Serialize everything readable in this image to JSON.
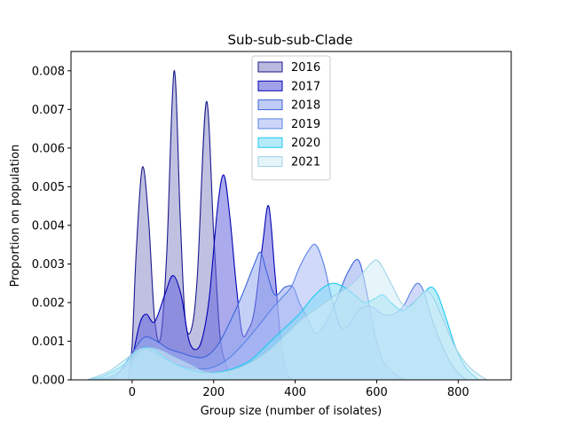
{
  "chart_data": {
    "type": "area",
    "title": "Sub-sub-sub-Clade",
    "xlabel": "Group size (number of isolates)",
    "ylabel": "Proportion on population",
    "xlim": [
      -150,
      930
    ],
    "ylim": [
      0,
      0.0085
    ],
    "xticks": [
      0,
      200,
      400,
      600,
      800
    ],
    "xtick_labels": [
      "0",
      "200",
      "400",
      "600",
      "800"
    ],
    "yticks": [
      0,
      0.001,
      0.002,
      0.003,
      0.004,
      0.005,
      0.006,
      0.007,
      0.008
    ],
    "ytick_labels": [
      "0.000",
      "0.001",
      "0.002",
      "0.003",
      "0.004",
      "0.005",
      "0.006",
      "0.007",
      "0.008"
    ],
    "legend_position": "top-center",
    "series": [
      {
        "name": "2016",
        "color": "#1a1a8c",
        "fill": "#8c8cc8",
        "points": [
          [
            -10,
            0
          ],
          [
            0,
            0.0009
          ],
          [
            10,
            0.0033
          ],
          [
            25,
            0.0055
          ],
          [
            40,
            0.0042
          ],
          [
            55,
            0.0016
          ],
          [
            70,
            0.0011
          ],
          [
            85,
            0.0033
          ],
          [
            103,
            0.008
          ],
          [
            118,
            0.0042
          ],
          [
            130,
            0.0016
          ],
          [
            145,
            0.0013
          ],
          [
            160,
            0.0027
          ],
          [
            182,
            0.0072
          ],
          [
            200,
            0.0038
          ],
          [
            215,
            0.0012
          ],
          [
            230,
            0.0004
          ],
          [
            245,
            0
          ]
        ]
      },
      {
        "name": "2017",
        "color": "#0000b4",
        "fill": "#6464dc",
        "points": [
          [
            -10,
            0
          ],
          [
            5,
            0.0008
          ],
          [
            20,
            0.0015
          ],
          [
            35,
            0.0017
          ],
          [
            55,
            0.0015
          ],
          [
            80,
            0.0022
          ],
          [
            100,
            0.0027
          ],
          [
            120,
            0.0022
          ],
          [
            140,
            0.001
          ],
          [
            160,
            0.0008
          ],
          [
            175,
            0.0012
          ],
          [
            190,
            0.0022
          ],
          [
            210,
            0.0045
          ],
          [
            225,
            0.0053
          ],
          [
            240,
            0.0042
          ],
          [
            255,
            0.0025
          ],
          [
            270,
            0.0012
          ],
          [
            285,
            0.0013
          ],
          [
            300,
            0.0018
          ],
          [
            320,
            0.0035
          ],
          [
            335,
            0.0045
          ],
          [
            350,
            0.0028
          ],
          [
            365,
            0.001
          ],
          [
            380,
            0.0002
          ],
          [
            395,
            0
          ]
        ]
      },
      {
        "name": "2018",
        "color": "#3c64dc",
        "fill": "#96aaf0",
        "points": [
          [
            -80,
            0
          ],
          [
            -40,
            0.0001
          ],
          [
            0,
            0.0007
          ],
          [
            30,
            0.0011
          ],
          [
            60,
            0.001
          ],
          [
            90,
            0.0008
          ],
          [
            120,
            0.0007
          ],
          [
            150,
            0.0006
          ],
          [
            180,
            0.0006
          ],
          [
            210,
            0.0009
          ],
          [
            240,
            0.0015
          ],
          [
            270,
            0.0022
          ],
          [
            300,
            0.003
          ],
          [
            315,
            0.0033
          ],
          [
            330,
            0.0028
          ],
          [
            350,
            0.0022
          ],
          [
            375,
            0.0024
          ],
          [
            395,
            0.0024
          ],
          [
            410,
            0.002
          ],
          [
            430,
            0.0016
          ],
          [
            450,
            0.0012
          ],
          [
            470,
            0.0014
          ],
          [
            490,
            0.0018
          ],
          [
            510,
            0.0023
          ],
          [
            530,
            0.0028
          ],
          [
            555,
            0.0031
          ],
          [
            575,
            0.0023
          ],
          [
            595,
            0.0012
          ],
          [
            615,
            0.0005
          ],
          [
            640,
            0.0002
          ],
          [
            665,
            0
          ]
        ]
      },
      {
        "name": "2019",
        "color": "#5a82e6",
        "fill": "#aabaf5",
        "points": [
          [
            -100,
            0
          ],
          [
            -50,
            0.0001
          ],
          [
            0,
            0.0005
          ],
          [
            30,
            0.0008
          ],
          [
            70,
            0.0006
          ],
          [
            110,
            0.0004
          ],
          [
            150,
            0.0003
          ],
          [
            190,
            0.0003
          ],
          [
            230,
            0.0005
          ],
          [
            270,
            0.0009
          ],
          [
            310,
            0.0014
          ],
          [
            340,
            0.0018
          ],
          [
            365,
            0.0021
          ],
          [
            390,
            0.0024
          ],
          [
            410,
            0.0029
          ],
          [
            430,
            0.0033
          ],
          [
            450,
            0.0035
          ],
          [
            470,
            0.003
          ],
          [
            490,
            0.0021
          ],
          [
            510,
            0.0014
          ],
          [
            530,
            0.0014
          ],
          [
            555,
            0.0018
          ],
          [
            585,
            0.0019
          ],
          [
            615,
            0.0017
          ],
          [
            640,
            0.0017
          ],
          [
            665,
            0.0019
          ],
          [
            685,
            0.0023
          ],
          [
            700,
            0.0025
          ],
          [
            715,
            0.0023
          ],
          [
            735,
            0.0016
          ],
          [
            760,
            0.0009
          ],
          [
            790,
            0.0003
          ],
          [
            820,
            0
          ]
        ]
      },
      {
        "name": "2020",
        "color": "#1ec8f0",
        "fill": "#82dcf5",
        "points": [
          [
            -110,
            0
          ],
          [
            -70,
            0.0001
          ],
          [
            -20,
            0.0004
          ],
          [
            20,
            0.0008
          ],
          [
            50,
            0.0008
          ],
          [
            90,
            0.0005
          ],
          [
            130,
            0.0003
          ],
          [
            170,
            0.0002
          ],
          [
            210,
            0.0002
          ],
          [
            250,
            0.0003
          ],
          [
            290,
            0.0005
          ],
          [
            330,
            0.0009
          ],
          [
            370,
            0.0013
          ],
          [
            410,
            0.0017
          ],
          [
            440,
            0.0021
          ],
          [
            470,
            0.0024
          ],
          [
            495,
            0.0025
          ],
          [
            520,
            0.0024
          ],
          [
            545,
            0.0022
          ],
          [
            570,
            0.002
          ],
          [
            595,
            0.0021
          ],
          [
            615,
            0.0022
          ],
          [
            635,
            0.002
          ],
          [
            660,
            0.0018
          ],
          [
            680,
            0.0019
          ],
          [
            700,
            0.0021
          ],
          [
            720,
            0.0023
          ],
          [
            735,
            0.0024
          ],
          [
            750,
            0.0022
          ],
          [
            770,
            0.0016
          ],
          [
            795,
            0.0008
          ],
          [
            820,
            0.0003
          ],
          [
            850,
            0
          ]
        ]
      },
      {
        "name": "2021",
        "color": "#a0d2e6",
        "fill": "#d2ecf5",
        "points": [
          [
            -110,
            0
          ],
          [
            -60,
            0.0002
          ],
          [
            -20,
            0.0005
          ],
          [
            20,
            0.0008
          ],
          [
            60,
            0.0008
          ],
          [
            100,
            0.0006
          ],
          [
            140,
            0.0004
          ],
          [
            180,
            0.0002
          ],
          [
            220,
            0.0002
          ],
          [
            260,
            0.0003
          ],
          [
            300,
            0.0005
          ],
          [
            340,
            0.0008
          ],
          [
            380,
            0.0012
          ],
          [
            420,
            0.0016
          ],
          [
            460,
            0.0019
          ],
          [
            500,
            0.0022
          ],
          [
            530,
            0.0024
          ],
          [
            560,
            0.0027
          ],
          [
            585,
            0.003
          ],
          [
            600,
            0.0031
          ],
          [
            615,
            0.0029
          ],
          [
            640,
            0.0024
          ],
          [
            660,
            0.002
          ],
          [
            680,
            0.0019
          ],
          [
            700,
            0.0021
          ],
          [
            720,
            0.0023
          ],
          [
            740,
            0.0021
          ],
          [
            765,
            0.0015
          ],
          [
            795,
            0.0008
          ],
          [
            830,
            0.0003
          ],
          [
            870,
            0
          ]
        ]
      }
    ]
  }
}
